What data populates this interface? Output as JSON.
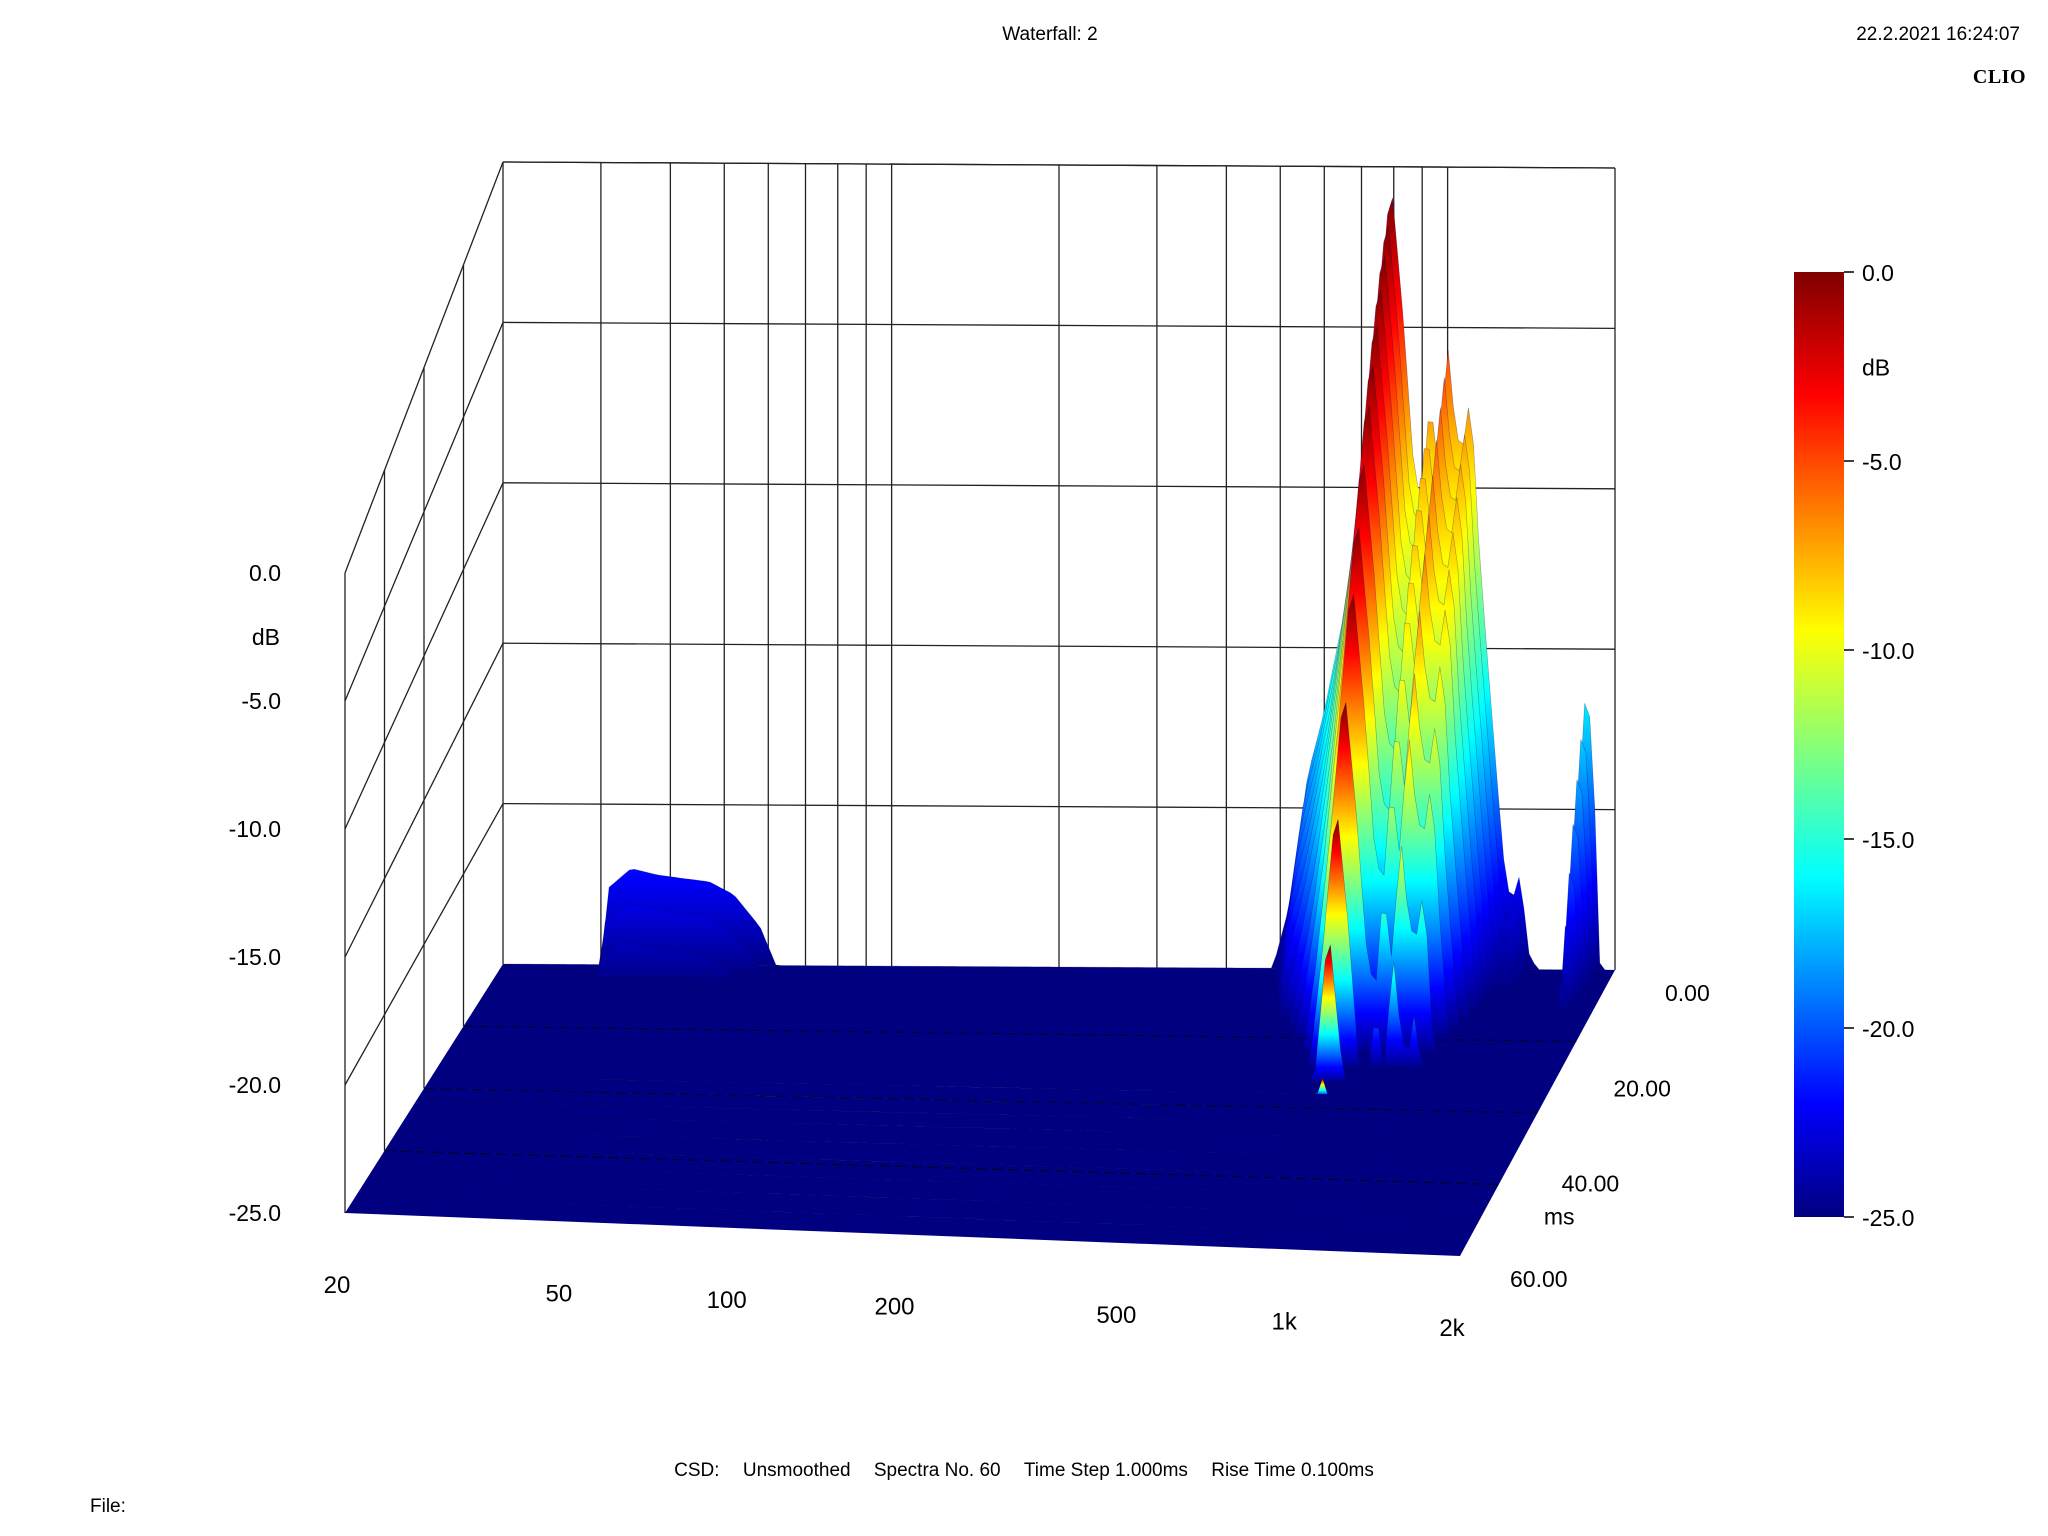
{
  "header": {
    "title": "Waterfall: 2",
    "datetime": "22.2.2021 16:24:07",
    "brand": "CLIO"
  },
  "footer": {
    "csd": "CSD:",
    "smoothing": "Unsmoothed",
    "spectra": "Spectra No. 60",
    "time_step": "Time Step 1.000ms",
    "rise_time": "Rise Time 0.100ms",
    "file_label": "File:"
  },
  "chart_data": {
    "type": "waterfall",
    "title": "Waterfall: 2",
    "x_axis": {
      "label": "",
      "scale": "log",
      "range": [
        20,
        2000
      ],
      "ticks": [
        20,
        50,
        100,
        200,
        500,
        1000,
        2000
      ],
      "tick_labels": [
        "20",
        "50",
        "100",
        "200",
        "500",
        "1k",
        "2k"
      ],
      "gridlines": [
        20,
        30,
        40,
        50,
        60,
        70,
        80,
        90,
        100,
        200,
        300,
        400,
        500,
        600,
        700,
        800,
        900,
        1000,
        2000
      ]
    },
    "y_axis": {
      "label": "dB",
      "range": [
        -25,
        0
      ],
      "ticks": [
        0,
        -5,
        -10,
        -15,
        -20,
        -25
      ],
      "tick_labels": [
        "0.0",
        "-5.0",
        "-10.0",
        "-15.0",
        "-20.0",
        "-25.0"
      ]
    },
    "z_axis": {
      "label": "ms",
      "range": [
        0,
        60
      ],
      "ticks": [
        0,
        20,
        40,
        60
      ],
      "tick_labels": [
        "0.00",
        "20.00",
        "40.00",
        "60.00"
      ]
    },
    "colorbar": {
      "label": "dB",
      "range": [
        -25,
        0
      ],
      "ticks": [
        0,
        -5,
        -10,
        -15,
        -20,
        -25
      ],
      "tick_labels": [
        "0.0",
        "-5.0",
        "-10.0",
        "-15.0",
        "-20.0",
        "-25.0"
      ],
      "colormap": "jet",
      "colors": [
        "#00007f",
        "#0000ff",
        "#00ffff",
        "#ffff00",
        "#ff0000",
        "#7f0000"
      ]
    },
    "grid": true,
    "spectrum_t0": [
      {
        "f": 20,
        "db": -25
      },
      {
        "f": 30,
        "db": -25
      },
      {
        "f": 31,
        "db": -22.6
      },
      {
        "f": 34,
        "db": -22.0
      },
      {
        "f": 38,
        "db": -22.2
      },
      {
        "f": 42,
        "db": -22.3
      },
      {
        "f": 47,
        "db": -22.4
      },
      {
        "f": 52,
        "db": -22.8
      },
      {
        "f": 58,
        "db": -23.8
      },
      {
        "f": 62,
        "db": -25
      },
      {
        "f": 485,
        "db": -25
      },
      {
        "f": 520,
        "db": -23.0
      },
      {
        "f": 560,
        "db": -19.0
      },
      {
        "f": 600,
        "db": -17.0
      },
      {
        "f": 650,
        "db": -14.0
      },
      {
        "f": 700,
        "db": -10.0
      },
      {
        "f": 750,
        "db": -5.0
      },
      {
        "f": 790,
        "db": -0.3
      },
      {
        "f": 830,
        "db": -4.5
      },
      {
        "f": 870,
        "db": -9.5
      },
      {
        "f": 900,
        "db": -10.5
      },
      {
        "f": 930,
        "db": -7.0
      },
      {
        "f": 960,
        "db": -9.5
      },
      {
        "f": 1000,
        "db": -5.5
      },
      {
        "f": 1030,
        "db": -8.0
      },
      {
        "f": 1060,
        "db": -9.0
      },
      {
        "f": 1100,
        "db": -7.0
      },
      {
        "f": 1140,
        "db": -12.0
      },
      {
        "f": 1200,
        "db": -17.0
      },
      {
        "f": 1260,
        "db": -21.5
      },
      {
        "f": 1300,
        "db": -23.0
      },
      {
        "f": 1350,
        "db": -22.0
      },
      {
        "f": 1400,
        "db": -24.5
      },
      {
        "f": 1450,
        "db": -25
      },
      {
        "f": 1650,
        "db": -25
      },
      {
        "f": 1720,
        "db": -20.0
      },
      {
        "f": 1780,
        "db": -15.5
      },
      {
        "f": 1840,
        "db": -20.0
      },
      {
        "f": 1880,
        "db": -25
      },
      {
        "f": 2000,
        "db": -25
      }
    ]
  }
}
